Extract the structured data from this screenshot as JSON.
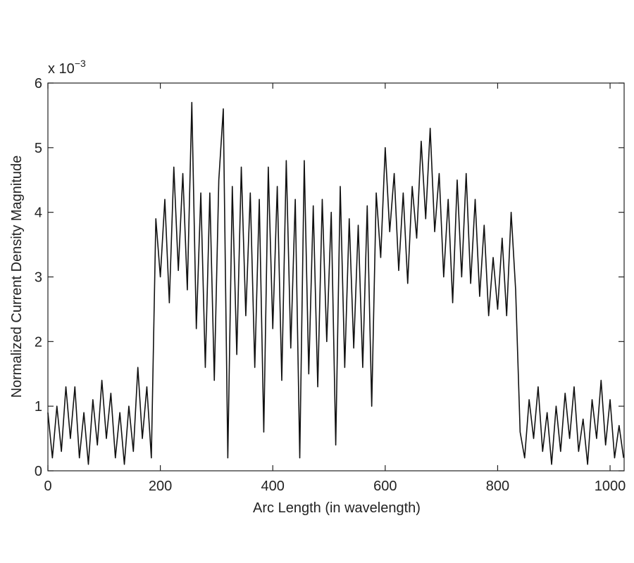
{
  "chart_data": {
    "type": "line",
    "x_label": "Arc Length (in wavelength)",
    "y_label": "Normalized Current Density Magnitude",
    "y_multiplier": {
      "base": "x 10",
      "exponent": "−3"
    },
    "color": "#111111",
    "xlim": [
      0,
      1025
    ],
    "ylim": [
      0,
      6
    ],
    "xticks": [
      0,
      200,
      400,
      600,
      800,
      1000
    ],
    "yticks": [
      0,
      1,
      2,
      3,
      4,
      5,
      6
    ],
    "grid": false,
    "x": [
      0,
      8,
      16,
      24,
      32,
      40,
      48,
      56,
      64,
      72,
      80,
      88,
      96,
      104,
      112,
      120,
      128,
      136,
      144,
      152,
      160,
      168,
      176,
      184,
      192,
      200,
      208,
      216,
      224,
      232,
      240,
      248,
      256,
      264,
      272,
      280,
      288,
      296,
      304,
      312,
      320,
      328,
      336,
      344,
      352,
      360,
      368,
      376,
      384,
      392,
      400,
      408,
      416,
      424,
      432,
      440,
      448,
      456,
      464,
      472,
      480,
      488,
      496,
      504,
      512,
      520,
      528,
      536,
      544,
      552,
      560,
      568,
      576,
      584,
      592,
      600,
      608,
      616,
      624,
      632,
      640,
      648,
      656,
      664,
      672,
      680,
      688,
      696,
      704,
      712,
      720,
      728,
      736,
      744,
      752,
      760,
      768,
      776,
      784,
      792,
      800,
      808,
      816,
      824,
      832,
      840,
      848,
      856,
      864,
      872,
      880,
      888,
      896,
      904,
      912,
      920,
      928,
      936,
      944,
      952,
      960,
      968,
      976,
      984,
      992,
      1000,
      1008,
      1016,
      1024
    ],
    "series": [
      {
        "name": "Current density",
        "values": [
          0.9,
          0.2,
          1.0,
          0.3,
          1.3,
          0.5,
          1.3,
          0.2,
          0.9,
          0.1,
          1.1,
          0.4,
          1.4,
          0.5,
          1.2,
          0.2,
          0.9,
          0.1,
          1.0,
          0.3,
          1.6,
          0.5,
          1.3,
          0.2,
          3.9,
          3.0,
          4.2,
          2.6,
          4.7,
          3.1,
          4.6,
          2.8,
          5.7,
          2.2,
          4.3,
          1.6,
          4.3,
          1.4,
          4.5,
          5.6,
          0.2,
          4.4,
          1.8,
          4.7,
          2.4,
          4.3,
          1.6,
          4.2,
          0.6,
          4.7,
          2.2,
          4.4,
          1.4,
          4.8,
          1.9,
          4.2,
          0.2,
          4.8,
          1.5,
          4.1,
          1.3,
          4.2,
          2.0,
          4.0,
          0.4,
          4.4,
          1.6,
          3.9,
          1.9,
          3.8,
          1.6,
          4.1,
          1.0,
          4.3,
          3.3,
          5.0,
          3.7,
          4.6,
          3.1,
          4.3,
          2.9,
          4.4,
          3.6,
          5.1,
          3.9,
          5.3,
          3.7,
          4.6,
          3.0,
          4.2,
          2.6,
          4.5,
          3.0,
          4.6,
          2.9,
          4.2,
          2.7,
          3.8,
          2.4,
          3.3,
          2.5,
          3.6,
          2.4,
          4.0,
          2.8,
          0.6,
          0.2,
          1.1,
          0.5,
          1.3,
          0.3,
          0.9,
          0.1,
          1.0,
          0.3,
          1.2,
          0.5,
          1.3,
          0.3,
          0.8,
          0.1,
          1.1,
          0.5,
          1.4,
          0.4,
          1.1,
          0.2,
          0.7,
          0.2
        ]
      }
    ]
  }
}
